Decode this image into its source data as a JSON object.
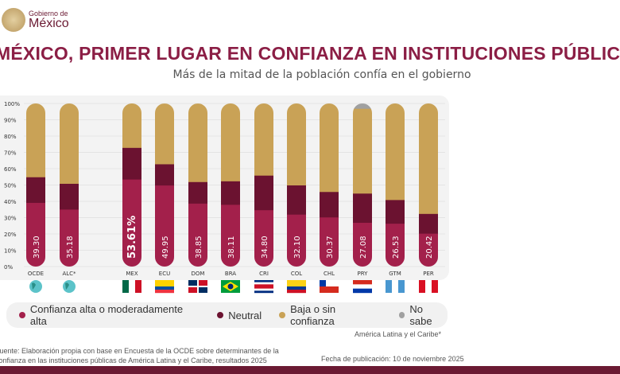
{
  "header": {
    "logo_line1": "Gobierno de",
    "logo_line2": "México",
    "title": "MÉXICO, PRIMER LUGAR EN CONFIANZA EN INSTITUCIONES PÚBLICAS",
    "subtitle": "Más de la mitad de la población confía en el gobierno"
  },
  "chart_data": {
    "type": "bar",
    "stacked": true,
    "orientation": "vertical",
    "ylim": [
      0,
      100
    ],
    "yticks": [
      "0%",
      "10%",
      "20%",
      "30%",
      "40%",
      "50%",
      "60%",
      "70%",
      "80%",
      "90%",
      "100%"
    ],
    "categories": [
      "OCDE",
      "ALC*",
      "MEX",
      "ECU",
      "DOM",
      "BRA",
      "CRI",
      "COL",
      "CHL",
      "PRY",
      "GTM",
      "PER"
    ],
    "data_labels": [
      "39.30",
      "35.18",
      "53.61%",
      "49.95",
      "38.85",
      "38.11",
      "34.80",
      "32.10",
      "30.37",
      "27.08",
      "26.53",
      "20.42"
    ],
    "series": [
      {
        "name": "Confianza alta o  moderadamente alta",
        "color": "#a3204b",
        "values": [
          39.3,
          35.18,
          53.61,
          49.95,
          38.85,
          38.11,
          34.8,
          32.1,
          30.37,
          27.08,
          26.53,
          20.42
        ]
      },
      {
        "name": "Neutral",
        "color": "#6b1230",
        "values": [
          15.7,
          15.8,
          19.4,
          13.0,
          13.2,
          14.4,
          21.2,
          17.9,
          15.6,
          17.9,
          14.5,
          12.1
        ]
      },
      {
        "name": "Baja o sin confianza",
        "color": "#c9a256",
        "values": [
          45.0,
          49.0,
          27.0,
          37.0,
          47.9,
          47.5,
          44.0,
          50.0,
          54.0,
          52.0,
          59.0,
          67.5
        ]
      },
      {
        "name": "No sabe",
        "color": "#a0a0a0",
        "values": [
          0,
          0,
          0,
          0,
          0,
          0,
          0,
          0,
          0,
          3.0,
          0,
          0
        ]
      }
    ],
    "legend_position": "bottom",
    "flags": [
      "globe",
      "globe",
      "mexico",
      "ecuador",
      "dominican-republic",
      "brazil",
      "costa-rica",
      "colombia",
      "chile",
      "paraguay",
      "guatemala",
      "peru"
    ]
  },
  "notes": {
    "alc": "América Latina y el Caribe*",
    "source_line1": "Fuente: Elaboración propia con base en Encuesta de la OCDE sobre determinantes de la",
    "source_line2": "confianza en las instituciones públicas de América Latina y el Caribe, resultados 2025",
    "date": "Fecha de publicación: 10 de noviembre 2025"
  }
}
